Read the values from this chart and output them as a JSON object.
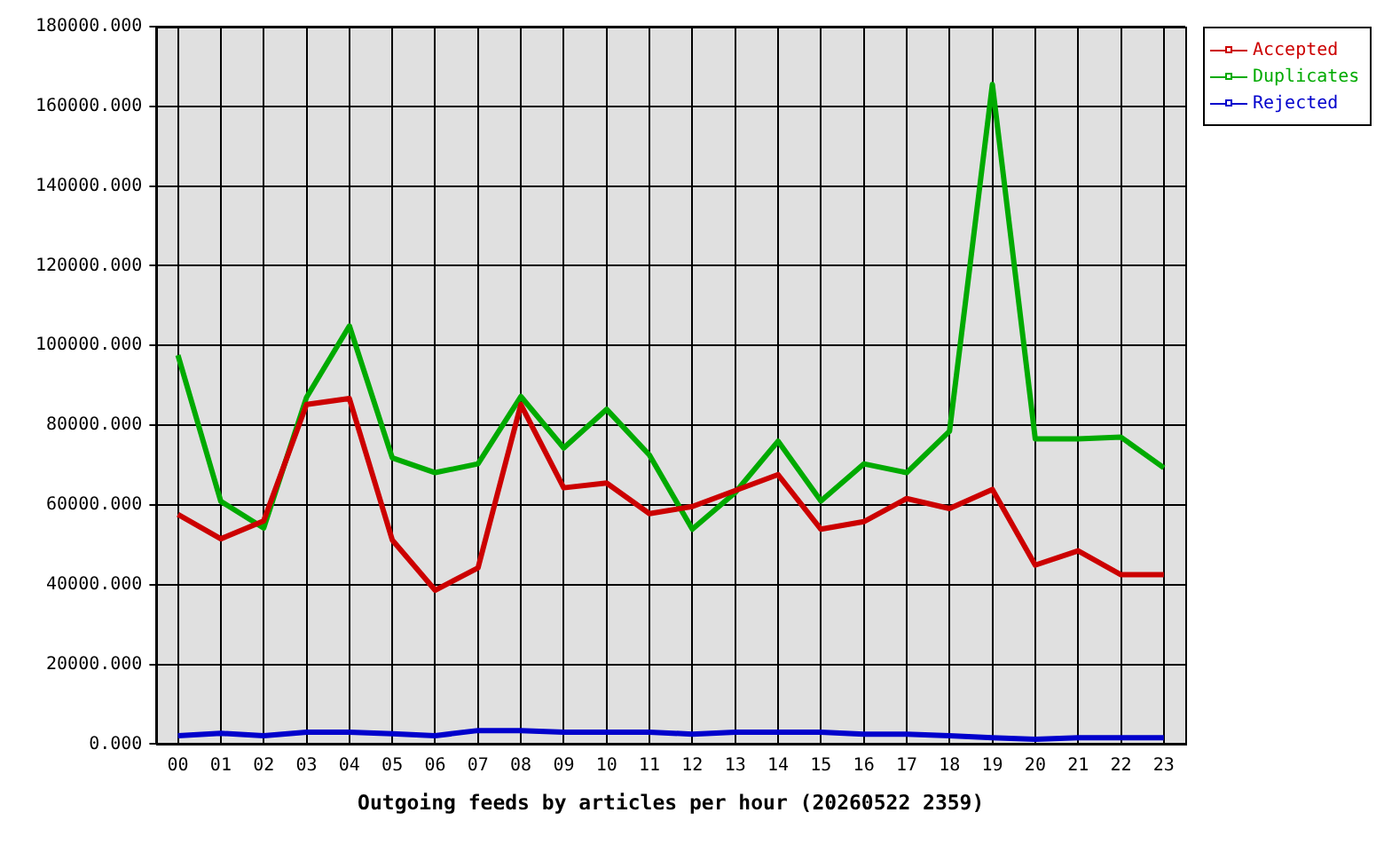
{
  "chart_data": {
    "type": "line",
    "xlabel": "Outgoing feeds by articles per hour (20260522 2359)",
    "categories": [
      "00",
      "01",
      "02",
      "03",
      "04",
      "05",
      "06",
      "07",
      "08",
      "09",
      "10",
      "11",
      "12",
      "13",
      "14",
      "15",
      "16",
      "17",
      "18",
      "19",
      "20",
      "21",
      "22",
      "23"
    ],
    "series": [
      {
        "name": "Accepted",
        "color": "#cc0000",
        "values": [
          57600,
          51500,
          56000,
          85200,
          86700,
          51200,
          38600,
          44200,
          85200,
          64300,
          65500,
          57800,
          59600,
          63600,
          67600,
          53900,
          55800,
          61600,
          59100,
          63900,
          44900,
          48500,
          42500,
          42500
        ]
      },
      {
        "name": "Duplicates",
        "color": "#00aa00",
        "values": [
          97600,
          60900,
          54200,
          87000,
          104900,
          71800,
          68100,
          70300,
          87200,
          74300,
          84000,
          72500,
          53900,
          63100,
          76000,
          61000,
          70300,
          68100,
          78500,
          165500,
          76600,
          76600,
          77000,
          69300
        ]
      },
      {
        "name": "Rejected",
        "color": "#0000cc",
        "values": [
          2100,
          2700,
          2100,
          3000,
          3000,
          2600,
          2100,
          3400,
          3400,
          3000,
          3000,
          3000,
          2500,
          3000,
          3000,
          3000,
          2500,
          2500,
          2100,
          1600,
          1200,
          1600,
          1600,
          1600
        ]
      }
    ],
    "ylim": [
      0,
      180000
    ],
    "yticks": [
      {
        "value": 0,
        "label": "0.000"
      },
      {
        "value": 20000,
        "label": "20000.000"
      },
      {
        "value": 40000,
        "label": "40000.000"
      },
      {
        "value": 60000,
        "label": "60000.000"
      },
      {
        "value": 80000,
        "label": "80000.000"
      },
      {
        "value": 100000,
        "label": "100000.000"
      },
      {
        "value": 120000,
        "label": "120000.000"
      },
      {
        "value": 140000,
        "label": "140000.000"
      },
      {
        "value": 160000,
        "label": "160000.000"
      },
      {
        "value": 180000,
        "label": "180000.000"
      }
    ],
    "grid": true,
    "legend": "top right",
    "marker": "none",
    "line_style": "solid"
  }
}
